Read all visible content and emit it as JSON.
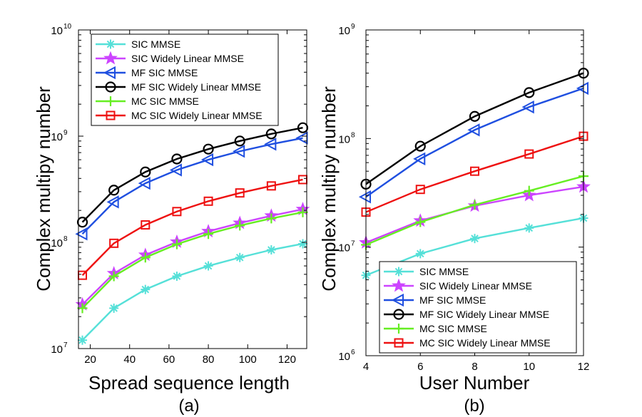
{
  "chart_data": [
    {
      "type": "line",
      "panel_label": "(a)",
      "xlabel": "Spread sequence length",
      "ylabel": "Complex multipy number",
      "yscale": "log",
      "xlim": [
        14,
        130
      ],
      "ylim": [
        10000000,
        10000000000
      ],
      "x_ticks": [
        20,
        40,
        60,
        80,
        100,
        120
      ],
      "y_ticks": [
        {
          "value": 10000000,
          "base": "10",
          "exp": "7"
        },
        {
          "value": 100000000,
          "base": "10",
          "exp": "8"
        },
        {
          "value": 1000000000,
          "base": "10",
          "exp": "9"
        },
        {
          "value": 10000000000,
          "base": "10",
          "exp": "10"
        }
      ],
      "legend_position": "top-left",
      "x": [
        16,
        32,
        48,
        64,
        80,
        96,
        112,
        128
      ],
      "series": [
        {
          "name": "SIC MMSE",
          "color": "#55e0d8",
          "marker": "asterisk",
          "values": [
            12000000,
            24000000,
            36000000,
            48000000,
            60000000,
            72000000,
            85000000,
            97000000
          ]
        },
        {
          "name": "SIC Widely Linear MMSE",
          "color": "#cc44ff",
          "marker": "star",
          "values": [
            26000000,
            51000000,
            76000000,
            101000000,
            127000000,
            152000000,
            178000000,
            205000000
          ]
        },
        {
          "name": "MF SIC MMSE",
          "color": "#1f4fe0",
          "marker": "triangle-left",
          "values": [
            120000000,
            240000000,
            360000000,
            480000000,
            600000000,
            720000000,
            840000000,
            960000000
          ]
        },
        {
          "name": "MF SIC Widely Linear MMSE",
          "color": "#000000",
          "marker": "circle",
          "values": [
            155000000,
            310000000,
            460000000,
            610000000,
            755000000,
            900000000,
            1050000000,
            1200000000
          ]
        },
        {
          "name": "MC SIC MMSE",
          "color": "#66ee22",
          "marker": "plus",
          "values": [
            24000000,
            48000000,
            72000000,
            96000000,
            120000000,
            144000000,
            168000000,
            192000000
          ]
        },
        {
          "name": "MC SIC Widely Linear MMSE",
          "color": "#ee1111",
          "marker": "square",
          "values": [
            49000000,
            98000000,
            146000000,
            195000000,
            244000000,
            292000000,
            340000000,
            390000000
          ]
        }
      ]
    },
    {
      "type": "line",
      "panel_label": "(b)",
      "xlabel": "User Number",
      "ylabel": "Complex multipy number",
      "yscale": "log",
      "xlim": [
        4,
        12
      ],
      "ylim": [
        1000000,
        1000000000
      ],
      "x_ticks": [
        4,
        6,
        8,
        10,
        12
      ],
      "y_ticks": [
        {
          "value": 1000000,
          "base": "10",
          "exp": "6"
        },
        {
          "value": 10000000,
          "base": "10",
          "exp": "7"
        },
        {
          "value": 100000000,
          "base": "10",
          "exp": "8"
        },
        {
          "value": 1000000000,
          "base": "10",
          "exp": "9"
        }
      ],
      "legend_position": "bottom-right",
      "x": [
        4,
        6,
        8,
        10,
        12
      ],
      "series": [
        {
          "name": "SIC MMSE",
          "color": "#55e0d8",
          "marker": "asterisk",
          "values": [
            5500000,
            8700000,
            12000000,
            15000000,
            18500000
          ]
        },
        {
          "name": "SIC Widely Linear MMSE",
          "color": "#cc44ff",
          "marker": "star",
          "values": [
            11000000,
            17500000,
            24000000,
            30000000,
            36000000
          ]
        },
        {
          "name": "MF SIC MMSE",
          "color": "#1f4fe0",
          "marker": "triangle-left",
          "values": [
            29000000,
            65000000,
            120000000,
            195000000,
            290000000
          ]
        },
        {
          "name": "MF SIC Widely Linear MMSE",
          "color": "#000000",
          "marker": "circle",
          "values": [
            38000000,
            85000000,
            160000000,
            265000000,
            400000000
          ]
        },
        {
          "name": "MC SIC MMSE",
          "color": "#66ee22",
          "marker": "plus",
          "values": [
            10500000,
            17000000,
            24500000,
            33000000,
            45000000
          ]
        },
        {
          "name": "MC SIC Widely Linear MMSE",
          "color": "#ee1111",
          "marker": "square",
          "values": [
            21000000,
            34000000,
            50000000,
            72000000,
            105000000
          ]
        }
      ]
    }
  ]
}
